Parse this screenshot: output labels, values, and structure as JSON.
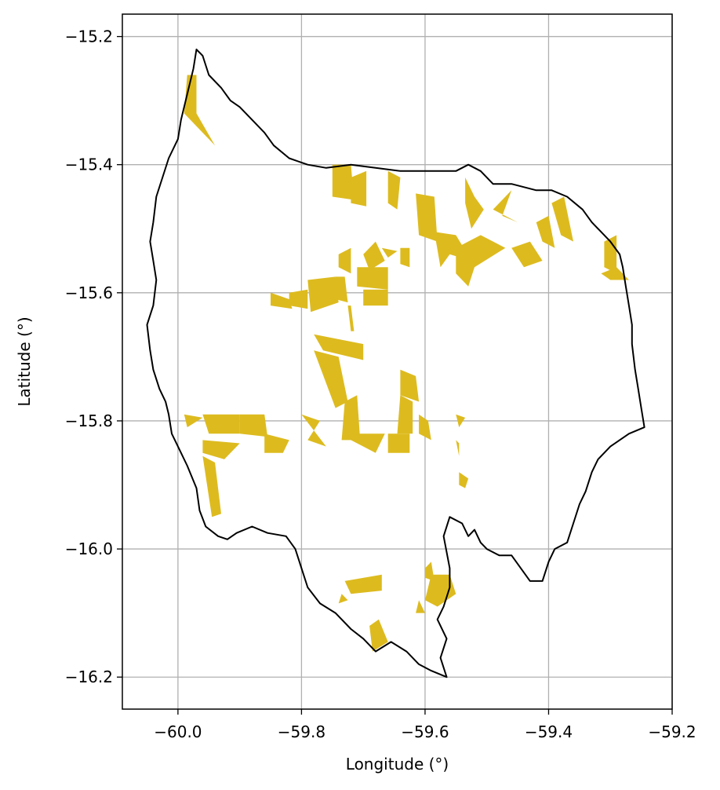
{
  "chart_data": {
    "type": "map",
    "xlabel": "Longitude (°)",
    "ylabel": "Latitude (°)",
    "xlim": [
      -60.09,
      -59.2
    ],
    "ylim": [
      -16.25,
      -15.165
    ],
    "grid": true,
    "x_ticks": [
      -60.0,
      -59.8,
      -59.6,
      -59.4,
      -59.2
    ],
    "x_tick_labels": [
      "−60.0",
      "−59.8",
      "−59.6",
      "−59.4",
      "−59.2"
    ],
    "y_ticks": [
      -15.2,
      -15.4,
      -15.6,
      -15.8,
      -16.0,
      -16.2
    ],
    "y_tick_labels": [
      "−15.2",
      "−15.4",
      "−15.6",
      "−15.8",
      "−16.0",
      "−16.2"
    ],
    "colors": {
      "boundary": "#000000",
      "parcels": "#DDBB1F",
      "grid": "#b0b0b0"
    },
    "boundary": [
      [
        -59.97,
        -15.22
      ],
      [
        -59.96,
        -15.23
      ],
      [
        -59.95,
        -15.26
      ],
      [
        -59.93,
        -15.28
      ],
      [
        -59.915,
        -15.3
      ],
      [
        -59.9,
        -15.31
      ],
      [
        -59.88,
        -15.33
      ],
      [
        -59.86,
        -15.35
      ],
      [
        -59.845,
        -15.37
      ],
      [
        -59.82,
        -15.39
      ],
      [
        -59.79,
        -15.4
      ],
      [
        -59.76,
        -15.405
      ],
      [
        -59.72,
        -15.4
      ],
      [
        -59.68,
        -15.405
      ],
      [
        -59.64,
        -15.41
      ],
      [
        -59.6,
        -15.41
      ],
      [
        -59.55,
        -15.41
      ],
      [
        -59.53,
        -15.4
      ],
      [
        -59.51,
        -15.41
      ],
      [
        -59.49,
        -15.43
      ],
      [
        -59.46,
        -15.43
      ],
      [
        -59.42,
        -15.44
      ],
      [
        -59.395,
        -15.44
      ],
      [
        -59.37,
        -15.45
      ],
      [
        -59.345,
        -15.47
      ],
      [
        -59.33,
        -15.49
      ],
      [
        -59.31,
        -15.51
      ],
      [
        -59.3,
        -15.52
      ],
      [
        -59.285,
        -15.54
      ],
      [
        -59.28,
        -15.56
      ],
      [
        -59.275,
        -15.59
      ],
      [
        -59.27,
        -15.62
      ],
      [
        -59.265,
        -15.65
      ],
      [
        -59.265,
        -15.68
      ],
      [
        -59.26,
        -15.72
      ],
      [
        -59.255,
        -15.75
      ],
      [
        -59.25,
        -15.78
      ],
      [
        -59.245,
        -15.81
      ],
      [
        -59.27,
        -15.82
      ],
      [
        -59.3,
        -15.84
      ],
      [
        -59.32,
        -15.86
      ],
      [
        -59.33,
        -15.88
      ],
      [
        -59.34,
        -15.91
      ],
      [
        -59.35,
        -15.93
      ],
      [
        -59.36,
        -15.96
      ],
      [
        -59.37,
        -15.99
      ],
      [
        -59.39,
        -16.0
      ],
      [
        -59.4,
        -16.02
      ],
      [
        -59.41,
        -16.05
      ],
      [
        -59.43,
        -16.05
      ],
      [
        -59.445,
        -16.03
      ],
      [
        -59.46,
        -16.01
      ],
      [
        -59.48,
        -16.01
      ],
      [
        -59.5,
        -16.0
      ],
      [
        -59.51,
        -15.99
      ],
      [
        -59.52,
        -15.97
      ],
      [
        -59.53,
        -15.98
      ],
      [
        -59.54,
        -15.96
      ],
      [
        -59.56,
        -15.95
      ],
      [
        -59.57,
        -15.98
      ],
      [
        -59.56,
        -16.03
      ],
      [
        -59.56,
        -16.06
      ],
      [
        -59.57,
        -16.09
      ],
      [
        -59.58,
        -16.11
      ],
      [
        -59.565,
        -16.14
      ],
      [
        -59.575,
        -16.17
      ],
      [
        -59.565,
        -16.2
      ],
      [
        -59.59,
        -16.19
      ],
      [
        -59.61,
        -16.18
      ],
      [
        -59.63,
        -16.16
      ],
      [
        -59.655,
        -16.145
      ],
      [
        -59.68,
        -16.16
      ],
      [
        -59.7,
        -16.14
      ],
      [
        -59.72,
        -16.125
      ],
      [
        -59.745,
        -16.1
      ],
      [
        -59.77,
        -16.085
      ],
      [
        -59.79,
        -16.06
      ],
      [
        -59.8,
        -16.03
      ],
      [
        -59.81,
        -16.0
      ],
      [
        -59.825,
        -15.98
      ],
      [
        -59.855,
        -15.975
      ],
      [
        -59.88,
        -15.965
      ],
      [
        -59.905,
        -15.975
      ],
      [
        -59.92,
        -15.985
      ],
      [
        -59.935,
        -15.98
      ],
      [
        -59.955,
        -15.965
      ],
      [
        -59.965,
        -15.94
      ],
      [
        -59.97,
        -15.905
      ],
      [
        -59.985,
        -15.87
      ],
      [
        -60.0,
        -15.84
      ],
      [
        -60.01,
        -15.82
      ],
      [
        -60.015,
        -15.79
      ],
      [
        -60.02,
        -15.77
      ],
      [
        -60.03,
        -15.75
      ],
      [
        -60.04,
        -15.72
      ],
      [
        -60.045,
        -15.69
      ],
      [
        -60.05,
        -15.65
      ],
      [
        -60.04,
        -15.62
      ],
      [
        -60.035,
        -15.58
      ],
      [
        -60.04,
        -15.55
      ],
      [
        -60.045,
        -15.52
      ],
      [
        -60.04,
        -15.49
      ],
      [
        -60.035,
        -15.45
      ],
      [
        -60.025,
        -15.42
      ],
      [
        -60.015,
        -15.39
      ],
      [
        -60.0,
        -15.36
      ],
      [
        -59.995,
        -15.33
      ],
      [
        -59.985,
        -15.29
      ],
      [
        -59.975,
        -15.25
      ],
      [
        -59.97,
        -15.22
      ]
    ],
    "parcels": [
      [
        [
          -59.985,
          -15.26
        ],
        [
          -59.97,
          -15.26
        ],
        [
          -59.97,
          -15.32
        ],
        [
          -59.94,
          -15.37
        ],
        [
          -59.99,
          -15.32
        ]
      ],
      [
        [
          -59.75,
          -15.4
        ],
        [
          -59.72,
          -15.4
        ],
        [
          -59.715,
          -15.455
        ],
        [
          -59.75,
          -15.45
        ]
      ],
      [
        [
          -59.72,
          -15.42
        ],
        [
          -59.695,
          -15.41
        ],
        [
          -59.695,
          -15.465
        ],
        [
          -59.72,
          -15.46
        ]
      ],
      [
        [
          -59.66,
          -15.41
        ],
        [
          -59.64,
          -15.42
        ],
        [
          -59.645,
          -15.47
        ],
        [
          -59.66,
          -15.46
        ]
      ],
      [
        [
          -59.615,
          -15.445
        ],
        [
          -59.585,
          -15.45
        ],
        [
          -59.58,
          -15.52
        ],
        [
          -59.61,
          -15.51
        ]
      ],
      [
        [
          -59.585,
          -15.505
        ],
        [
          -59.55,
          -15.51
        ],
        [
          -59.525,
          -15.55
        ],
        [
          -59.56,
          -15.54
        ],
        [
          -59.575,
          -15.56
        ]
      ],
      [
        [
          -59.55,
          -15.53
        ],
        [
          -59.51,
          -15.51
        ],
        [
          -59.47,
          -15.53
        ],
        [
          -59.52,
          -15.56
        ],
        [
          -59.53,
          -15.59
        ],
        [
          -59.55,
          -15.57
        ]
      ],
      [
        [
          -59.535,
          -15.42
        ],
        [
          -59.52,
          -15.45
        ],
        [
          -59.505,
          -15.47
        ],
        [
          -59.525,
          -15.5
        ],
        [
          -59.535,
          -15.46
        ]
      ],
      [
        [
          -59.49,
          -15.47
        ],
        [
          -59.46,
          -15.44
        ],
        [
          -59.475,
          -15.48
        ],
        [
          -59.45,
          -15.49
        ]
      ],
      [
        [
          -59.46,
          -15.53
        ],
        [
          -59.43,
          -15.52
        ],
        [
          -59.41,
          -15.55
        ],
        [
          -59.44,
          -15.56
        ]
      ],
      [
        [
          -59.42,
          -15.49
        ],
        [
          -59.4,
          -15.48
        ],
        [
          -59.39,
          -15.53
        ],
        [
          -59.41,
          -15.52
        ]
      ],
      [
        [
          -59.395,
          -15.46
        ],
        [
          -59.375,
          -15.45
        ],
        [
          -59.36,
          -15.52
        ],
        [
          -59.38,
          -15.51
        ]
      ],
      [
        [
          -59.31,
          -15.52
        ],
        [
          -59.29,
          -15.51
        ],
        [
          -59.29,
          -15.57
        ],
        [
          -59.31,
          -15.56
        ]
      ],
      [
        [
          -59.315,
          -15.57
        ],
        [
          -59.29,
          -15.56
        ],
        [
          -59.27,
          -15.58
        ],
        [
          -59.3,
          -15.58
        ]
      ],
      [
        [
          -59.74,
          -15.54
        ],
        [
          -59.72,
          -15.53
        ],
        [
          -59.72,
          -15.57
        ],
        [
          -59.74,
          -15.56
        ]
      ],
      [
        [
          -59.71,
          -15.56
        ],
        [
          -59.66,
          -15.56
        ],
        [
          -59.66,
          -15.595
        ],
        [
          -59.71,
          -15.59
        ]
      ],
      [
        [
          -59.7,
          -15.54
        ],
        [
          -59.68,
          -15.52
        ],
        [
          -59.665,
          -15.55
        ],
        [
          -59.69,
          -15.565
        ]
      ],
      [
        [
          -59.64,
          -15.53
        ],
        [
          -59.625,
          -15.53
        ],
        [
          -59.625,
          -15.56
        ],
        [
          -59.64,
          -15.555
        ]
      ],
      [
        [
          -59.67,
          -15.53
        ],
        [
          -59.645,
          -15.535
        ],
        [
          -59.66,
          -15.545
        ]
      ],
      [
        [
          -59.85,
          -15.6
        ],
        [
          -59.82,
          -15.61
        ],
        [
          -59.815,
          -15.625
        ],
        [
          -59.85,
          -15.62
        ]
      ],
      [
        [
          -59.82,
          -15.6
        ],
        [
          -59.79,
          -15.595
        ],
        [
          -59.79,
          -15.625
        ],
        [
          -59.82,
          -15.62
        ]
      ],
      [
        [
          -59.79,
          -15.58
        ],
        [
          -59.745,
          -15.575
        ],
        [
          -59.74,
          -15.615
        ],
        [
          -59.785,
          -15.63
        ]
      ],
      [
        [
          -59.745,
          -15.575
        ],
        [
          -59.73,
          -15.575
        ],
        [
          -59.725,
          -15.615
        ],
        [
          -59.745,
          -15.61
        ]
      ],
      [
        [
          -59.7,
          -15.595
        ],
        [
          -59.66,
          -15.595
        ],
        [
          -59.66,
          -15.62
        ],
        [
          -59.7,
          -15.62
        ]
      ],
      [
        [
          -59.725,
          -15.62
        ],
        [
          -59.72,
          -15.66
        ],
        [
          -59.715,
          -15.66
        ],
        [
          -59.72,
          -15.62
        ]
      ],
      [
        [
          -59.78,
          -15.665
        ],
        [
          -59.7,
          -15.68
        ],
        [
          -59.7,
          -15.705
        ],
        [
          -59.765,
          -15.69
        ]
      ],
      [
        [
          -59.78,
          -15.69
        ],
        [
          -59.74,
          -15.7
        ],
        [
          -59.725,
          -15.77
        ],
        [
          -59.745,
          -15.78
        ]
      ],
      [
        [
          -59.73,
          -15.77
        ],
        [
          -59.71,
          -15.76
        ],
        [
          -59.705,
          -15.83
        ],
        [
          -59.735,
          -15.83
        ]
      ],
      [
        [
          -59.9,
          -15.79
        ],
        [
          -59.86,
          -15.79
        ],
        [
          -59.855,
          -15.825
        ],
        [
          -59.9,
          -15.82
        ]
      ],
      [
        [
          -59.99,
          -15.79
        ],
        [
          -59.96,
          -15.795
        ],
        [
          -59.985,
          -15.81
        ]
      ],
      [
        [
          -59.96,
          -15.79
        ],
        [
          -59.9,
          -15.79
        ],
        [
          -59.9,
          -15.82
        ],
        [
          -59.95,
          -15.82
        ]
      ],
      [
        [
          -59.86,
          -15.82
        ],
        [
          -59.82,
          -15.83
        ],
        [
          -59.83,
          -15.85
        ],
        [
          -59.86,
          -15.85
        ]
      ],
      [
        [
          -59.96,
          -15.83
        ],
        [
          -59.9,
          -15.835
        ],
        [
          -59.925,
          -15.86
        ],
        [
          -59.96,
          -15.85
        ]
      ],
      [
        [
          -59.96,
          -15.855
        ],
        [
          -59.94,
          -15.865
        ],
        [
          -59.93,
          -15.945
        ],
        [
          -59.945,
          -15.95
        ]
      ],
      [
        [
          -59.8,
          -15.79
        ],
        [
          -59.77,
          -15.8
        ],
        [
          -59.79,
          -15.83
        ],
        [
          -59.76,
          -15.84
        ]
      ],
      [
        [
          -59.72,
          -15.82
        ],
        [
          -59.665,
          -15.82
        ],
        [
          -59.68,
          -15.85
        ],
        [
          -59.72,
          -15.83
        ]
      ],
      [
        [
          -59.66,
          -15.82
        ],
        [
          -59.625,
          -15.82
        ],
        [
          -59.625,
          -15.85
        ],
        [
          -59.66,
          -15.85
        ]
      ],
      [
        [
          -59.64,
          -15.72
        ],
        [
          -59.615,
          -15.73
        ],
        [
          -59.61,
          -15.77
        ],
        [
          -59.64,
          -15.76
        ]
      ],
      [
        [
          -59.64,
          -15.76
        ],
        [
          -59.62,
          -15.77
        ],
        [
          -59.62,
          -15.82
        ],
        [
          -59.645,
          -15.82
        ]
      ],
      [
        [
          -59.61,
          -15.79
        ],
        [
          -59.595,
          -15.8
        ],
        [
          -59.59,
          -15.83
        ],
        [
          -59.61,
          -15.82
        ]
      ],
      [
        [
          -59.55,
          -15.79
        ],
        [
          -59.535,
          -15.795
        ],
        [
          -59.545,
          -15.81
        ]
      ],
      [
        [
          -59.55,
          -15.83
        ],
        [
          -59.545,
          -15.855
        ],
        [
          -59.545,
          -15.835
        ]
      ],
      [
        [
          -59.545,
          -15.88
        ],
        [
          -59.53,
          -15.89
        ],
        [
          -59.535,
          -15.905
        ],
        [
          -59.545,
          -15.9
        ]
      ],
      [
        [
          -59.6,
          -16.03
        ],
        [
          -59.59,
          -16.02
        ],
        [
          -59.585,
          -16.05
        ],
        [
          -59.6,
          -16.045
        ]
      ],
      [
        [
          -59.59,
          -16.04
        ],
        [
          -59.56,
          -16.04
        ],
        [
          -59.55,
          -16.07
        ],
        [
          -59.58,
          -16.09
        ],
        [
          -59.6,
          -16.08
        ]
      ],
      [
        [
          -59.61,
          -16.08
        ],
        [
          -59.6,
          -16.1
        ],
        [
          -59.615,
          -16.1
        ]
      ],
      [
        [
          -59.73,
          -16.05
        ],
        [
          -59.67,
          -16.04
        ],
        [
          -59.67,
          -16.065
        ],
        [
          -59.72,
          -16.07
        ]
      ],
      [
        [
          -59.735,
          -16.07
        ],
        [
          -59.725,
          -16.08
        ],
        [
          -59.74,
          -16.085
        ]
      ],
      [
        [
          -59.69,
          -16.12
        ],
        [
          -59.675,
          -16.11
        ],
        [
          -59.66,
          -16.145
        ],
        [
          -59.685,
          -16.16
        ]
      ]
    ]
  }
}
